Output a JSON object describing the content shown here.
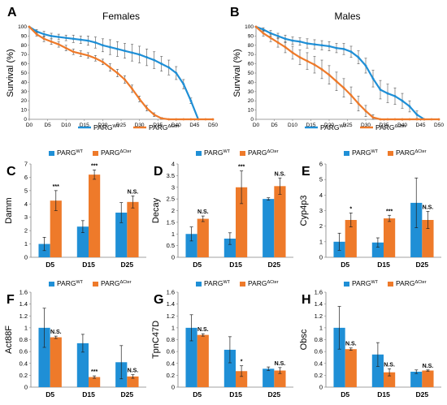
{
  "colors": {
    "wt": "#1f8fd6",
    "ct": "#ee7a2a",
    "axis": "#808080",
    "err": "#555555"
  },
  "chart_data": [
    {
      "panel": "A",
      "type": "line",
      "title": "Females",
      "xlabel": "",
      "ylabel": "Survival (%)",
      "ylim": [
        0,
        100
      ],
      "yticks": [
        0,
        10,
        20,
        30,
        40,
        50,
        60,
        70,
        80,
        90,
        100
      ],
      "xlim": [
        0,
        50
      ],
      "xticks": [
        0,
        5,
        10,
        15,
        20,
        25,
        30,
        35,
        40,
        45,
        50
      ],
      "xtick_labels": [
        "D0",
        "D5",
        "D10",
        "D15",
        "D20",
        "D25",
        "D30",
        "D35",
        "D40",
        "D45",
        "D50"
      ],
      "legend": [
        "PARG",
        "PARG"
      ],
      "legend_sup": [
        "WT",
        "ΔCter"
      ],
      "legend_position": "bottom",
      "series": [
        {
          "name": "PARGWT",
          "color_key": "wt",
          "x": [
            0,
            2,
            4,
            6,
            8,
            10,
            12,
            14,
            16,
            18,
            20,
            22,
            24,
            26,
            28,
            30,
            32,
            34,
            36,
            38,
            40,
            42,
            44,
            46
          ],
          "y": [
            100,
            95,
            92,
            90,
            89,
            88,
            87,
            86,
            85,
            83,
            80,
            78,
            76,
            74,
            72,
            70,
            67,
            64,
            60,
            56,
            50,
            38,
            20,
            0
          ],
          "err": [
            0,
            2,
            3,
            3,
            3,
            3,
            4,
            4,
            5,
            6,
            7,
            8,
            8,
            8,
            9,
            9,
            9,
            9,
            8,
            8,
            7,
            5,
            3,
            0
          ]
        },
        {
          "name": "PARGΔCter",
          "color_key": "ct",
          "x": [
            0,
            2,
            4,
            6,
            8,
            10,
            12,
            14,
            16,
            18,
            20,
            22,
            24,
            26,
            28,
            30,
            32,
            34,
            36,
            38,
            40,
            42,
            44,
            46,
            48,
            50
          ],
          "y": [
            100,
            92,
            87,
            84,
            81,
            77,
            73,
            71,
            69,
            66,
            62,
            56,
            50,
            43,
            33,
            22,
            12,
            5,
            1,
            0,
            0,
            0,
            0,
            0,
            0,
            0
          ],
          "err": [
            0,
            2,
            3,
            3,
            3,
            3,
            3,
            3,
            3,
            3,
            3,
            4,
            4,
            4,
            4,
            3,
            3,
            2,
            1,
            0,
            0,
            0,
            0,
            0,
            0,
            0
          ]
        }
      ]
    },
    {
      "panel": "B",
      "type": "line",
      "title": "Males",
      "xlabel": "",
      "ylabel": "Survival (%)",
      "ylim": [
        0,
        100
      ],
      "yticks": [
        0,
        10,
        20,
        30,
        40,
        50,
        60,
        70,
        80,
        90,
        100
      ],
      "xlim": [
        0,
        50
      ],
      "xticks": [
        0,
        5,
        10,
        15,
        20,
        25,
        30,
        35,
        40,
        45,
        50
      ],
      "xtick_labels": [
        "D0",
        "D5",
        "D10",
        "D15",
        "D20",
        "D25",
        "D30",
        "D35",
        "D40",
        "D45",
        "D50"
      ],
      "legend": [
        "PARG",
        "PARG"
      ],
      "legend_sup": [
        "WT",
        "ΔCter"
      ],
      "legend_position": "bottom",
      "series": [
        {
          "name": "PARGWT",
          "color_key": "wt",
          "x": [
            0,
            2,
            4,
            6,
            8,
            10,
            12,
            14,
            16,
            18,
            20,
            22,
            24,
            26,
            28,
            30,
            32,
            34,
            36,
            38,
            40,
            42,
            44,
            46
          ],
          "y": [
            100,
            97,
            93,
            90,
            87,
            85,
            84,
            82,
            81,
            80,
            79,
            77,
            76,
            73,
            67,
            58,
            44,
            32,
            28,
            25,
            20,
            14,
            5,
            0
          ],
          "err": [
            0,
            2,
            3,
            3,
            4,
            4,
            4,
            5,
            5,
            5,
            5,
            5,
            6,
            6,
            7,
            8,
            9,
            10,
            10,
            9,
            8,
            6,
            4,
            0
          ]
        },
        {
          "name": "PARGΔCter",
          "color_key": "ct",
          "x": [
            0,
            2,
            4,
            6,
            8,
            10,
            12,
            14,
            16,
            18,
            20,
            22,
            24,
            26,
            28,
            30,
            32,
            34,
            36,
            38,
            40,
            42,
            44,
            46,
            48,
            50
          ],
          "y": [
            100,
            93,
            88,
            83,
            78,
            72,
            67,
            63,
            59,
            54,
            48,
            41,
            34,
            26,
            17,
            9,
            2,
            0,
            0,
            0,
            0,
            0,
            0,
            0,
            0,
            0
          ],
          "err": [
            0,
            3,
            4,
            5,
            6,
            7,
            8,
            9,
            9,
            10,
            10,
            10,
            10,
            9,
            8,
            6,
            3,
            0,
            0,
            0,
            0,
            0,
            0,
            0,
            0,
            0
          ]
        }
      ]
    },
    {
      "panel": "C",
      "type": "bar",
      "ylabel": "Damm",
      "ylim": [
        0,
        7
      ],
      "yticks": [
        0,
        1,
        2,
        3,
        4,
        5,
        6,
        7
      ],
      "categories": [
        "D5",
        "D15",
        "D25"
      ],
      "legend": [
        "PARG",
        "PARG"
      ],
      "legend_sup": [
        "WT",
        "ΔCter"
      ],
      "legend_position": "top",
      "series": [
        {
          "name": "PARGWT",
          "color_key": "wt",
          "values": [
            1.0,
            2.3,
            3.35
          ],
          "err": [
            0.5,
            0.45,
            0.75
          ]
        },
        {
          "name": "PARGΔCter",
          "color_key": "ct",
          "values": [
            4.25,
            6.2,
            4.15
          ],
          "err": [
            0.75,
            0.35,
            0.45
          ]
        }
      ],
      "annotations": [
        "***",
        "***",
        "N.S."
      ]
    },
    {
      "panel": "D",
      "type": "bar",
      "ylabel": "Decay",
      "ylim": [
        0,
        4
      ],
      "yticks": [
        0,
        0.5,
        1,
        1.5,
        2,
        2.5,
        3,
        3.5,
        4
      ],
      "categories": [
        "D5",
        "D15",
        "D25"
      ],
      "legend": [
        "PARG",
        "PARG"
      ],
      "legend_sup": [
        "WT",
        "ΔCter"
      ],
      "legend_position": "top",
      "series": [
        {
          "name": "PARGWT",
          "color_key": "wt",
          "values": [
            1.0,
            0.8,
            2.5
          ],
          "err": [
            0.3,
            0.25,
            0.05
          ]
        },
        {
          "name": "PARGΔCter",
          "color_key": "ct",
          "values": [
            1.65,
            3.0,
            3.05
          ],
          "err": [
            0.12,
            0.7,
            0.35
          ]
        }
      ],
      "annotations": [
        "N.S.",
        "***",
        "N.S."
      ]
    },
    {
      "panel": "E",
      "type": "bar",
      "ylabel": "Cyp4p3",
      "ylim": [
        0,
        6
      ],
      "yticks": [
        0,
        1,
        2,
        3,
        4,
        5,
        6
      ],
      "categories": [
        "D5",
        "D15",
        "D25"
      ],
      "legend": [
        "PARG",
        "PARG"
      ],
      "legend_sup": [
        "WT",
        "ΔCter"
      ],
      "legend_position": "top",
      "series": [
        {
          "name": "PARGWT",
          "color_key": "wt",
          "values": [
            1.0,
            0.95,
            3.5
          ],
          "err": [
            0.55,
            0.3,
            1.6
          ]
        },
        {
          "name": "PARGΔCter",
          "color_key": "ct",
          "values": [
            2.4,
            2.5,
            2.4
          ],
          "err": [
            0.45,
            0.2,
            0.55
          ]
        }
      ],
      "annotations": [
        "*",
        "***",
        "N.S."
      ]
    },
    {
      "panel": "F",
      "type": "bar",
      "ylabel": "Act88F",
      "ylim": [
        0,
        1.6
      ],
      "yticks": [
        0,
        0.2,
        0.4,
        0.6,
        0.8,
        1,
        1.2,
        1.4,
        1.6
      ],
      "categories": [
        "D5",
        "D15",
        "D25"
      ],
      "legend": [
        "PARG",
        "PARG"
      ],
      "legend_sup": [
        "WT",
        "ΔCter"
      ],
      "legend_position": "top",
      "series": [
        {
          "name": "PARGWT",
          "color_key": "wt",
          "values": [
            1.0,
            0.74,
            0.42
          ],
          "err": [
            0.33,
            0.15,
            0.28
          ]
        },
        {
          "name": "PARGΔCter",
          "color_key": "ct",
          "values": [
            0.84,
            0.17,
            0.18
          ],
          "err": [
            0.02,
            0.02,
            0.03
          ]
        }
      ],
      "annotations": [
        "N.S.",
        "***",
        "N.S."
      ]
    },
    {
      "panel": "G",
      "type": "bar",
      "ylabel": "TpnC47D",
      "ylim": [
        0,
        1.6
      ],
      "yticks": [
        0,
        0.2,
        0.4,
        0.6,
        0.8,
        1,
        1.2,
        1.4,
        1.6
      ],
      "categories": [
        "D5",
        "D15",
        "D25"
      ],
      "legend": [
        "PARG",
        "PARG"
      ],
      "legend_sup": [
        "WT",
        "ΔCter"
      ],
      "legend_position": "top",
      "series": [
        {
          "name": "PARGWT",
          "color_key": "wt",
          "values": [
            1.0,
            0.63,
            0.31
          ],
          "err": [
            0.22,
            0.22,
            0.03
          ]
        },
        {
          "name": "PARGΔCter",
          "color_key": "ct",
          "values": [
            0.88,
            0.27,
            0.28
          ],
          "err": [
            0.02,
            0.09,
            0.05
          ]
        }
      ],
      "annotations": [
        "N.S.",
        "*",
        "N.S."
      ]
    },
    {
      "panel": "H",
      "type": "bar",
      "ylabel": "Obsc",
      "ylim": [
        0,
        1.6
      ],
      "yticks": [
        0,
        0.2,
        0.4,
        0.6,
        0.8,
        1,
        1.2,
        1.4,
        1.6
      ],
      "categories": [
        "D5",
        "D15",
        "D25"
      ],
      "legend": [
        "PARG",
        "PARG"
      ],
      "legend_sup": [
        "WT",
        "ΔCter"
      ],
      "legend_position": "top",
      "series": [
        {
          "name": "PARGWT",
          "color_key": "wt",
          "values": [
            1.0,
            0.55,
            0.26
          ],
          "err": [
            0.36,
            0.2,
            0.03
          ]
        },
        {
          "name": "PARGΔCter",
          "color_key": "ct",
          "values": [
            0.64,
            0.25,
            0.28
          ],
          "err": [
            0.02,
            0.06,
            0.01
          ]
        }
      ],
      "annotations": [
        "N.S.",
        "N.S.",
        "N.S."
      ]
    }
  ]
}
